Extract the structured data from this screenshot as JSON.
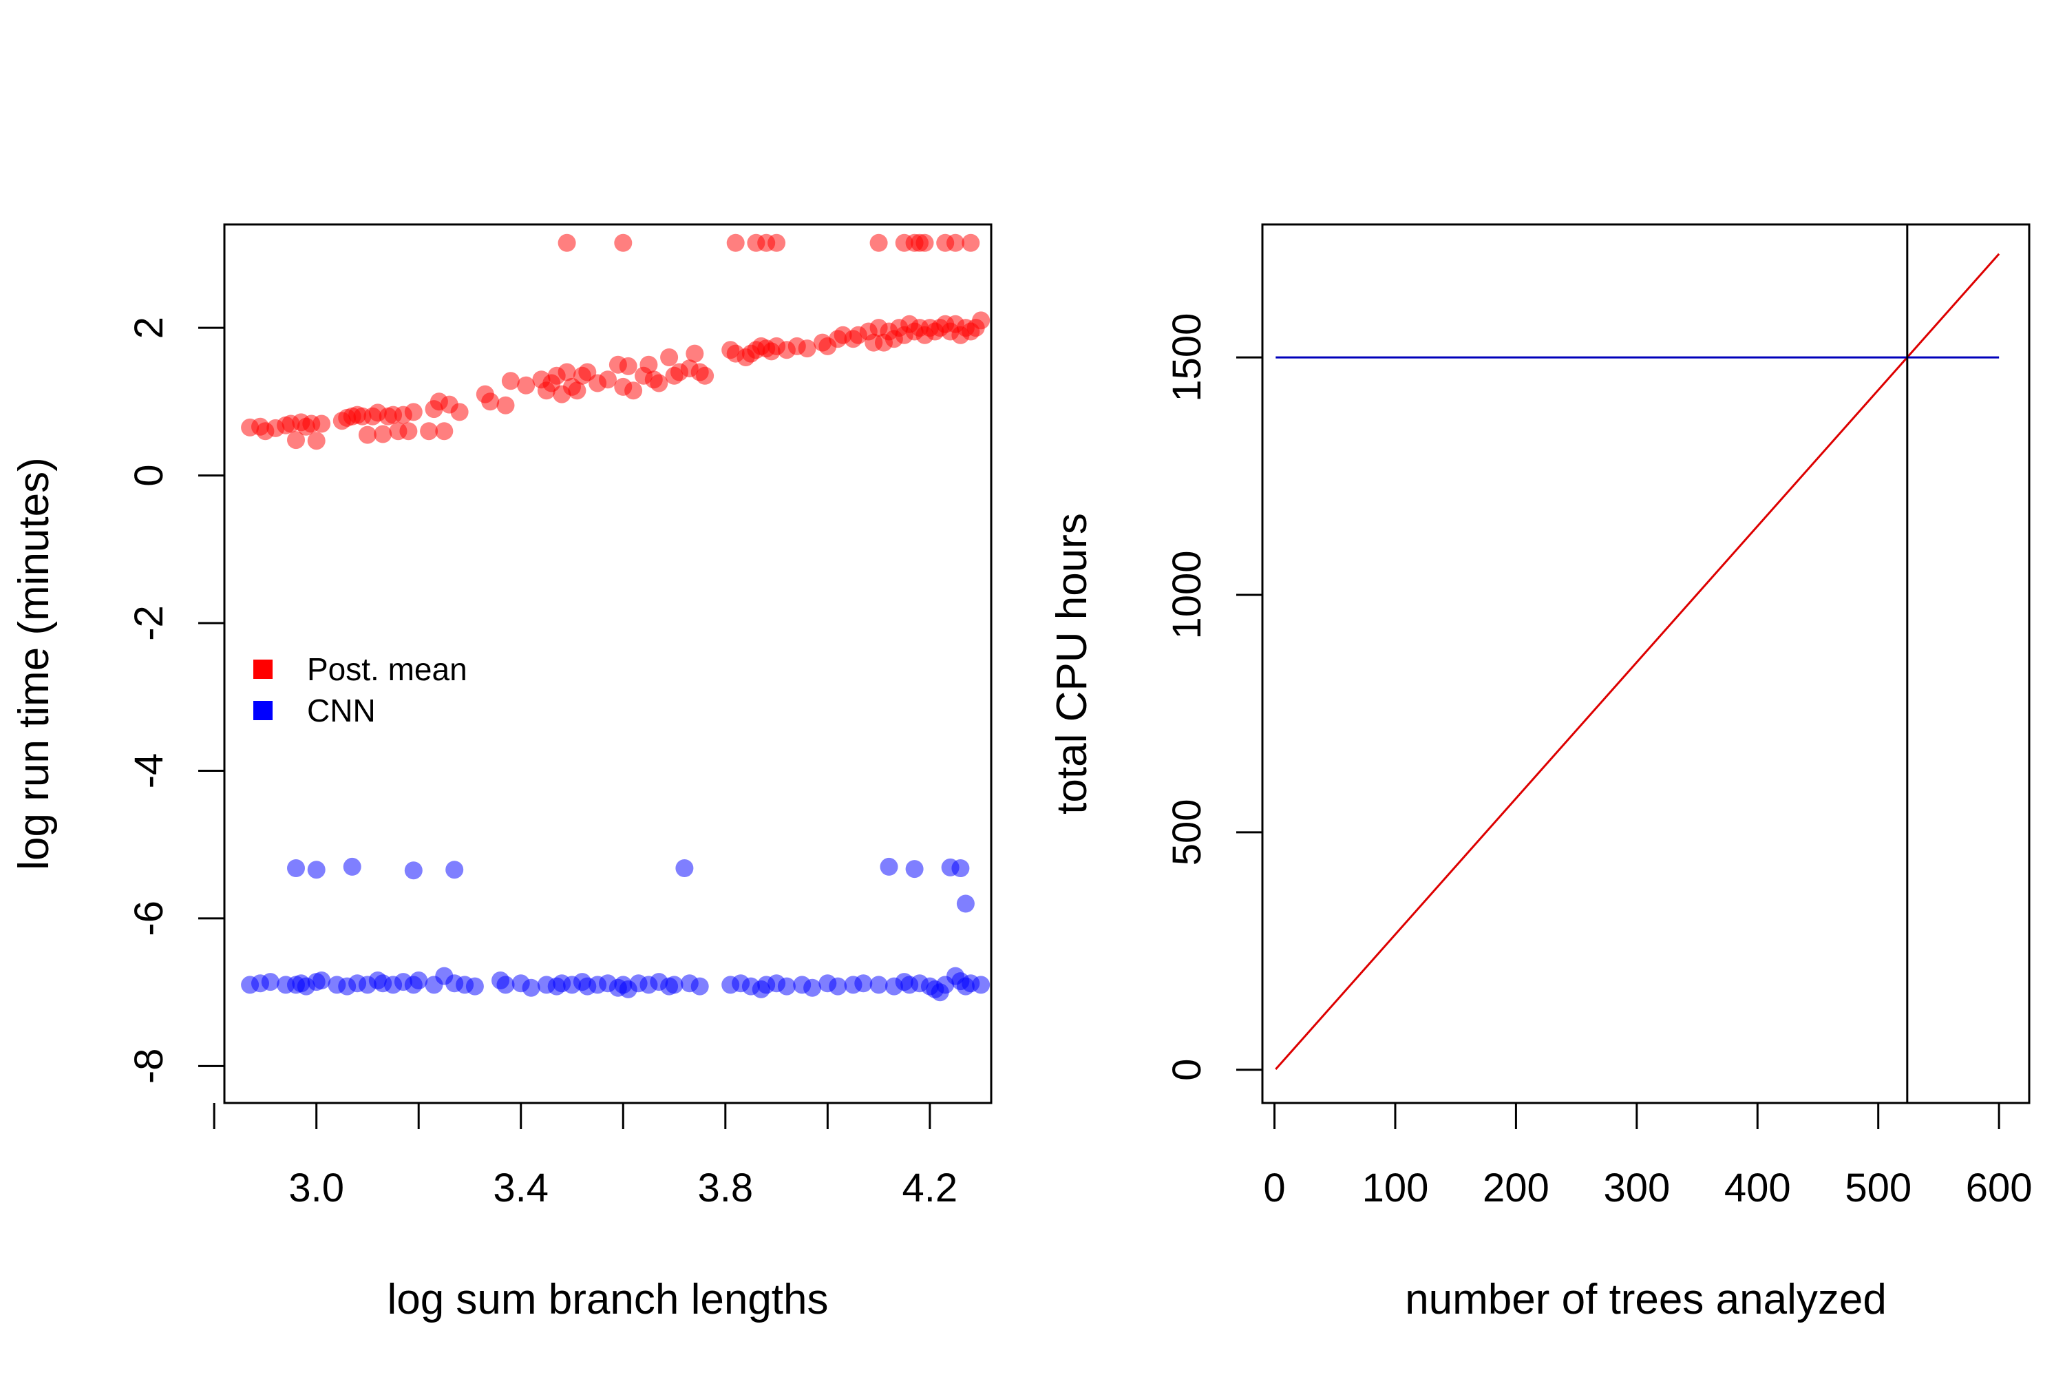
{
  "chart_data": [
    {
      "type": "scatter",
      "xlabel": "log sum branch lengths",
      "ylabel": "log run time (minutes)",
      "xlim": [
        2.82,
        4.32
      ],
      "ylim": [
        -8.5,
        3.4
      ],
      "xticks": [
        2.8,
        3.0,
        3.2,
        3.4,
        3.6,
        3.8,
        4.0,
        4.2
      ],
      "xtick_labels": [
        "3.0",
        "3.4",
        "3.8",
        "4.2"
      ],
      "xtick_label_values": [
        3.0,
        3.4,
        3.8,
        4.2
      ],
      "yticks": [
        -8,
        -6,
        -4,
        -2,
        0,
        2
      ],
      "ytick_labels": [
        "-8",
        "-6",
        "-4",
        "-2",
        "0",
        "2"
      ],
      "legend": {
        "position": "center-left",
        "entries": [
          {
            "label": "Post. mean",
            "color": "#ff0000"
          },
          {
            "label": "CNN",
            "color": "#0000ff"
          }
        ]
      },
      "series": [
        {
          "name": "Post. mean",
          "color": "#ff0000",
          "points": [
            [
              2.87,
              0.65
            ],
            [
              2.89,
              0.66
            ],
            [
              2.9,
              0.6
            ],
            [
              2.92,
              0.64
            ],
            [
              2.94,
              0.68
            ],
            [
              2.95,
              0.7
            ],
            [
              2.96,
              0.48
            ],
            [
              2.97,
              0.72
            ],
            [
              2.98,
              0.66
            ],
            [
              2.99,
              0.7
            ],
            [
              3.0,
              0.47
            ],
            [
              3.01,
              0.7
            ],
            [
              3.05,
              0.74
            ],
            [
              3.06,
              0.78
            ],
            [
              3.07,
              0.8
            ],
            [
              3.08,
              0.82
            ],
            [
              3.09,
              0.8
            ],
            [
              3.1,
              0.55
            ],
            [
              3.11,
              0.8
            ],
            [
              3.12,
              0.85
            ],
            [
              3.13,
              0.56
            ],
            [
              3.14,
              0.8
            ],
            [
              3.15,
              0.82
            ],
            [
              3.16,
              0.6
            ],
            [
              3.17,
              0.82
            ],
            [
              3.18,
              0.6
            ],
            [
              3.19,
              0.86
            ],
            [
              3.22,
              0.6
            ],
            [
              3.23,
              0.9
            ],
            [
              3.24,
              1.0
            ],
            [
              3.25,
              0.6
            ],
            [
              3.26,
              0.96
            ],
            [
              3.28,
              0.86
            ],
            [
              3.33,
              1.1
            ],
            [
              3.34,
              1.0
            ],
            [
              3.37,
              0.95
            ],
            [
              3.38,
              1.28
            ],
            [
              3.41,
              1.22
            ],
            [
              3.44,
              1.3
            ],
            [
              3.45,
              1.15
            ],
            [
              3.46,
              1.25
            ],
            [
              3.47,
              1.35
            ],
            [
              3.48,
              1.1
            ],
            [
              3.49,
              1.4
            ],
            [
              3.5,
              1.2
            ],
            [
              3.51,
              1.15
            ],
            [
              3.52,
              1.35
            ],
            [
              3.53,
              1.4
            ],
            [
              3.55,
              1.25
            ],
            [
              3.57,
              1.3
            ],
            [
              3.59,
              1.5
            ],
            [
              3.6,
              1.2
            ],
            [
              3.61,
              1.48
            ],
            [
              3.62,
              1.15
            ],
            [
              3.64,
              1.35
            ],
            [
              3.65,
              1.5
            ],
            [
              3.66,
              1.3
            ],
            [
              3.67,
              1.25
            ],
            [
              3.69,
              1.6
            ],
            [
              3.7,
              1.35
            ],
            [
              3.71,
              1.4
            ],
            [
              3.73,
              1.45
            ],
            [
              3.74,
              1.65
            ],
            [
              3.75,
              1.4
            ],
            [
              3.76,
              1.35
            ],
            [
              3.81,
              1.7
            ],
            [
              3.82,
              1.65
            ],
            [
              3.84,
              1.6
            ],
            [
              3.85,
              1.65
            ],
            [
              3.86,
              1.7
            ],
            [
              3.87,
              1.75
            ],
            [
              3.88,
              1.72
            ],
            [
              3.89,
              1.68
            ],
            [
              3.9,
              1.75
            ],
            [
              3.92,
              1.7
            ],
            [
              3.94,
              1.75
            ],
            [
              3.96,
              1.72
            ],
            [
              3.99,
              1.8
            ],
            [
              4.0,
              1.75
            ],
            [
              4.02,
              1.85
            ],
            [
              4.03,
              1.9
            ],
            [
              4.05,
              1.85
            ],
            [
              4.06,
              1.9
            ],
            [
              4.08,
              1.95
            ],
            [
              4.09,
              1.8
            ],
            [
              4.1,
              2.0
            ],
            [
              4.11,
              1.8
            ],
            [
              4.12,
              1.95
            ],
            [
              4.13,
              1.85
            ],
            [
              4.14,
              2.0
            ],
            [
              4.15,
              1.9
            ],
            [
              4.16,
              2.05
            ],
            [
              4.17,
              1.95
            ],
            [
              4.18,
              2.0
            ],
            [
              4.19,
              1.9
            ],
            [
              4.2,
              2.0
            ],
            [
              4.21,
              1.95
            ],
            [
              4.22,
              2.0
            ],
            [
              4.23,
              2.05
            ],
            [
              4.24,
              1.95
            ],
            [
              4.25,
              2.05
            ],
            [
              4.26,
              1.9
            ],
            [
              4.27,
              2.0
            ],
            [
              4.28,
              1.95
            ],
            [
              4.29,
              2.0
            ],
            [
              4.3,
              2.1
            ],
            [
              3.49,
              3.15
            ],
            [
              3.6,
              3.15
            ],
            [
              3.82,
              3.15
            ],
            [
              3.86,
              3.15
            ],
            [
              3.88,
              3.15
            ],
            [
              3.9,
              3.15
            ],
            [
              4.1,
              3.15
            ],
            [
              4.15,
              3.15
            ],
            [
              4.17,
              3.15
            ],
            [
              4.18,
              3.15
            ],
            [
              4.19,
              3.15
            ],
            [
              4.23,
              3.15
            ],
            [
              4.25,
              3.15
            ],
            [
              4.28,
              3.15
            ]
          ]
        },
        {
          "name": "CNN",
          "color": "#0000ff",
          "points": [
            [
              2.96,
              -5.32
            ],
            [
              3.0,
              -5.34
            ],
            [
              3.07,
              -5.3
            ],
            [
              3.19,
              -5.35
            ],
            [
              3.27,
              -5.34
            ],
            [
              3.72,
              -5.32
            ],
            [
              4.12,
              -5.3
            ],
            [
              4.17,
              -5.33
            ],
            [
              4.24,
              -5.31
            ],
            [
              4.26,
              -5.32
            ],
            [
              4.27,
              -5.8
            ],
            [
              2.87,
              -6.9
            ],
            [
              2.89,
              -6.88
            ],
            [
              2.91,
              -6.86
            ],
            [
              2.94,
              -6.9
            ],
            [
              2.96,
              -6.9
            ],
            [
              2.97,
              -6.88
            ],
            [
              2.98,
              -6.92
            ],
            [
              3.0,
              -6.86
            ],
            [
              3.01,
              -6.84
            ],
            [
              3.04,
              -6.9
            ],
            [
              3.06,
              -6.92
            ],
            [
              3.08,
              -6.88
            ],
            [
              3.1,
              -6.9
            ],
            [
              3.12,
              -6.84
            ],
            [
              3.13,
              -6.88
            ],
            [
              3.15,
              -6.9
            ],
            [
              3.17,
              -6.86
            ],
            [
              3.19,
              -6.9
            ],
            [
              3.2,
              -6.84
            ],
            [
              3.23,
              -6.9
            ],
            [
              3.25,
              -6.78
            ],
            [
              3.27,
              -6.88
            ],
            [
              3.29,
              -6.9
            ],
            [
              3.31,
              -6.92
            ],
            [
              3.36,
              -6.84
            ],
            [
              3.37,
              -6.9
            ],
            [
              3.4,
              -6.88
            ],
            [
              3.42,
              -6.94
            ],
            [
              3.45,
              -6.9
            ],
            [
              3.47,
              -6.92
            ],
            [
              3.48,
              -6.88
            ],
            [
              3.5,
              -6.9
            ],
            [
              3.52,
              -6.86
            ],
            [
              3.53,
              -6.92
            ],
            [
              3.55,
              -6.9
            ],
            [
              3.57,
              -6.88
            ],
            [
              3.59,
              -6.94
            ],
            [
              3.6,
              -6.9
            ],
            [
              3.61,
              -6.96
            ],
            [
              3.63,
              -6.88
            ],
            [
              3.65,
              -6.9
            ],
            [
              3.67,
              -6.86
            ],
            [
              3.69,
              -6.92
            ],
            [
              3.7,
              -6.9
            ],
            [
              3.73,
              -6.88
            ],
            [
              3.75,
              -6.92
            ],
            [
              3.81,
              -6.9
            ],
            [
              3.83,
              -6.88
            ],
            [
              3.85,
              -6.92
            ],
            [
              3.87,
              -6.96
            ],
            [
              3.88,
              -6.9
            ],
            [
              3.9,
              -6.88
            ],
            [
              3.92,
              -6.92
            ],
            [
              3.95,
              -6.9
            ],
            [
              3.97,
              -6.94
            ],
            [
              4.0,
              -6.88
            ],
            [
              4.02,
              -6.92
            ],
            [
              4.05,
              -6.9
            ],
            [
              4.07,
              -6.88
            ],
            [
              4.1,
              -6.9
            ],
            [
              4.13,
              -6.92
            ],
            [
              4.15,
              -6.86
            ],
            [
              4.16,
              -6.9
            ],
            [
              4.18,
              -6.88
            ],
            [
              4.2,
              -6.92
            ],
            [
              4.21,
              -6.96
            ],
            [
              4.22,
              -7.0
            ],
            [
              4.23,
              -6.9
            ],
            [
              4.25,
              -6.78
            ],
            [
              4.26,
              -6.85
            ],
            [
              4.27,
              -6.92
            ],
            [
              4.28,
              -6.88
            ],
            [
              4.3,
              -6.9
            ]
          ]
        }
      ]
    },
    {
      "type": "line",
      "xlabel": "number of trees analyzed",
      "ylabel": "total CPU hours",
      "xlim": [
        -10,
        625
      ],
      "ylim": [
        -70,
        1780
      ],
      "xticks": [
        0,
        100,
        200,
        300,
        400,
        500,
        600
      ],
      "xtick_labels": [
        "0",
        "100",
        "200",
        "300",
        "400",
        "500",
        "600"
      ],
      "yticks": [
        0,
        500,
        1000,
        1500
      ],
      "ytick_labels": [
        "0",
        "500",
        "1000",
        "1500"
      ],
      "series": [
        {
          "color": "#dd0000",
          "x": [
            1,
            600
          ],
          "y": [
            1,
            1718
          ]
        },
        {
          "color": "#0000bb",
          "x": [
            1,
            600
          ],
          "y": [
            1500,
            1500
          ]
        }
      ],
      "vline": {
        "x": 524,
        "color": "#000000"
      }
    }
  ]
}
